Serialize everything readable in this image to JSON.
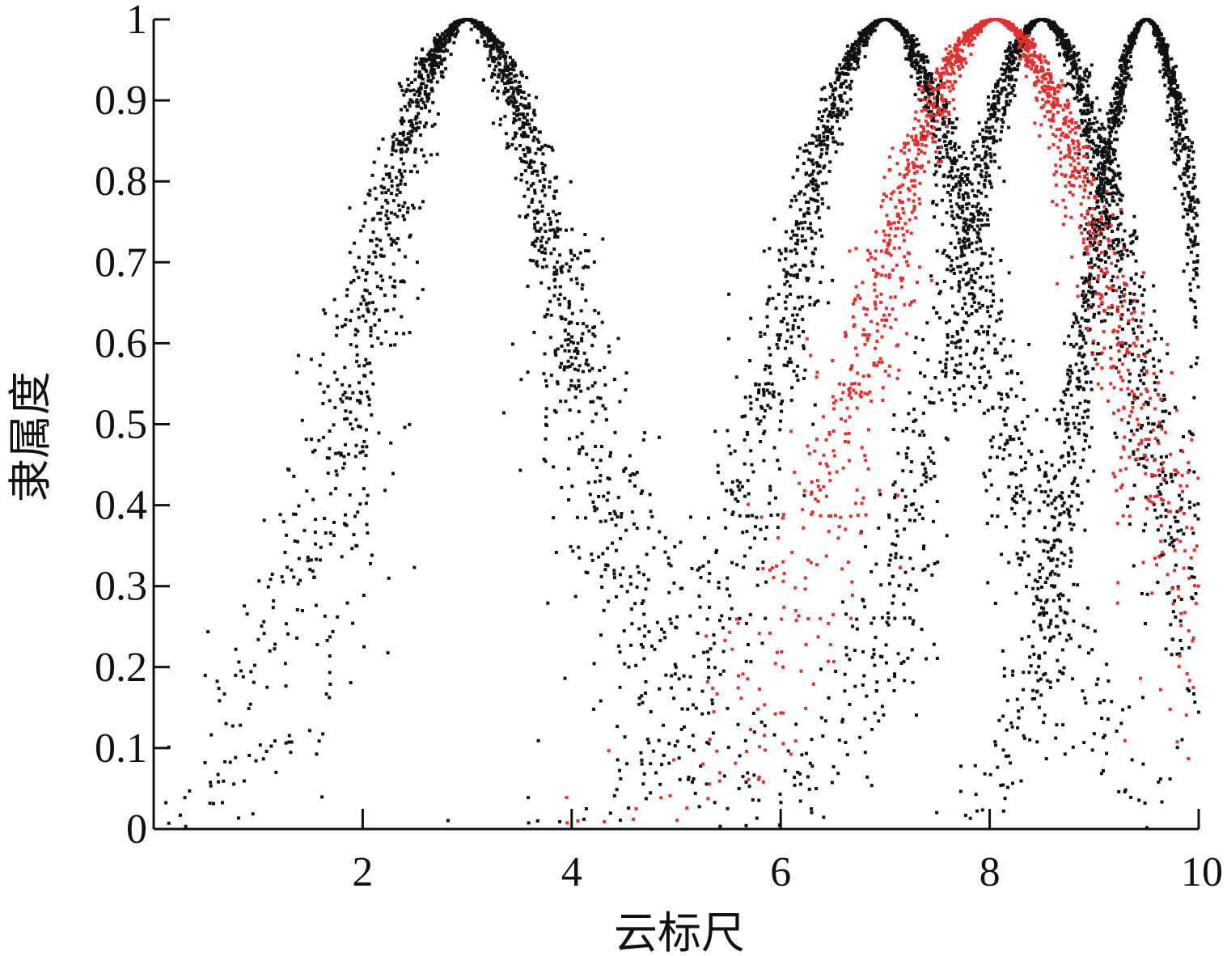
{
  "chart_data": {
    "type": "scatter",
    "title": "",
    "xlabel": "云标尺",
    "ylabel": "隶属度",
    "xlim": [
      0,
      10
    ],
    "ylim": [
      0,
      1
    ],
    "x_ticks": [
      2,
      4,
      6,
      8,
      10
    ],
    "y_ticks": [
      0,
      0.1,
      0.2,
      0.3,
      0.4,
      0.5,
      0.6,
      0.7,
      0.8,
      0.9,
      1
    ],
    "x_tick_labels": [
      "2",
      "4",
      "6",
      "8",
      "10"
    ],
    "y_tick_labels": [
      "0",
      "0.1",
      "0.2",
      "0.3",
      "0.4",
      "0.5",
      "0.6",
      "0.7",
      "0.8",
      "0.9",
      "1"
    ],
    "grid": false,
    "legend": "none",
    "series": [
      {
        "color": "#111111",
        "ex": 3.0,
        "en": 1.0,
        "he": 0.2,
        "count": 1800
      },
      {
        "color": "#111111",
        "ex": 7.0,
        "en": 1.0,
        "he": 0.15,
        "count": 1600
      },
      {
        "color": "#111111",
        "ex": 8.5,
        "en": 0.9,
        "he": 0.14,
        "count": 1500
      },
      {
        "color": "#111111",
        "ex": 9.5,
        "en": 0.6,
        "he": 0.08,
        "count": 1300
      },
      {
        "color": "#e03131",
        "ex": 8.05,
        "en": 1.2,
        "he": 0.18,
        "count": 1500
      }
    ]
  }
}
